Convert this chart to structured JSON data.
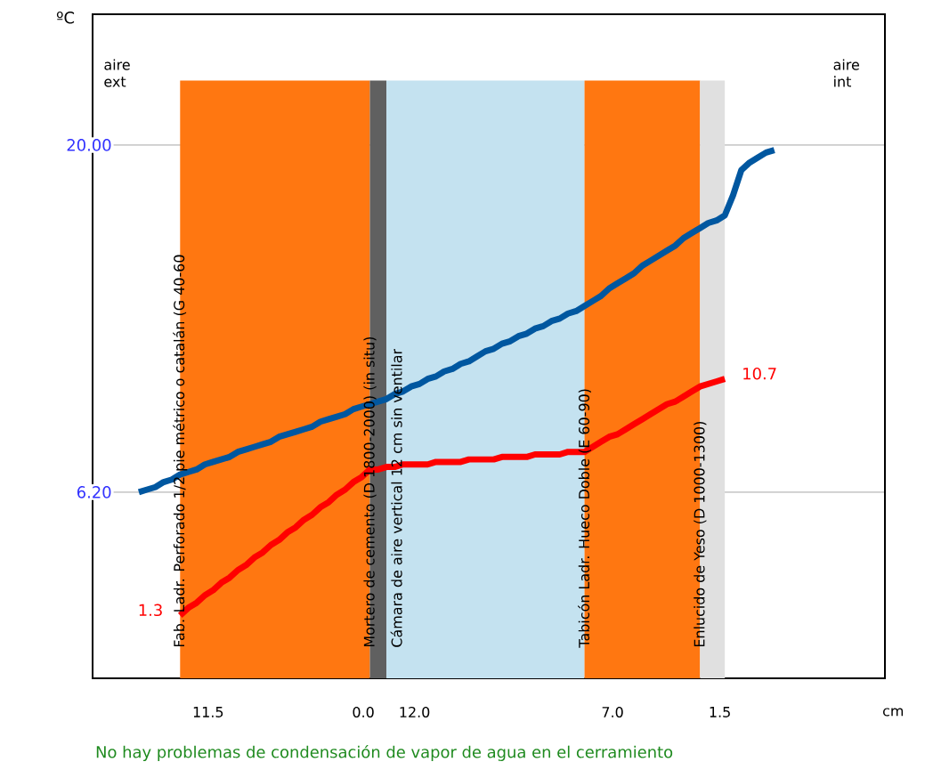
{
  "chart_data": {
    "type": "line",
    "ylabel": "ºC",
    "categories": [
      null,
      null,
      null,
      null,
      null,
      null,
      null,
      null,
      null,
      null,
      null,
      null,
      null,
      null,
      null,
      null,
      null,
      null,
      null,
      null,
      null,
      null,
      null,
      null,
      null,
      null,
      null,
      null,
      null,
      null,
      null,
      null,
      null,
      null,
      null,
      null,
      null,
      null,
      null,
      null,
      null,
      null,
      null,
      null,
      null,
      null,
      null,
      null,
      null,
      null,
      null,
      null,
      null,
      null,
      null,
      null,
      null,
      null,
      null,
      null,
      null,
      null,
      null,
      null,
      null,
      null,
      null,
      null,
      null,
      null,
      null,
      null,
      null,
      null,
      null,
      null,
      null,
      null
    ],
    "ylim": [
      -1.2,
      25.2
    ],
    "yticks": [
      {
        "value": 6.2,
        "label": "6.20"
      },
      {
        "value": 20,
        "label": "20.00"
      }
    ],
    "grid": "y",
    "series": [
      {
        "color": "#0057a0",
        "values": [
          6.2,
          6.3,
          6.4,
          6.6,
          6.7,
          6.9,
          7.0,
          7.1,
          7.3,
          7.4,
          7.5,
          7.6,
          7.8,
          7.9,
          8.0,
          8.1,
          8.2,
          8.4,
          8.5,
          8.6,
          8.7,
          8.8,
          9.0,
          9.1,
          9.2,
          9.3,
          9.5,
          9.6,
          9.7,
          9.8,
          9.9,
          10.1,
          10.2,
          10.4,
          10.5,
          10.7,
          10.8,
          11.0,
          11.1,
          11.3,
          11.4,
          11.6,
          11.8,
          11.9,
          12.1,
          12.2,
          12.4,
          12.5,
          12.7,
          12.8,
          13.0,
          13.1,
          13.3,
          13.4,
          13.6,
          13.8,
          14.0,
          14.3,
          14.5,
          14.7,
          14.9,
          15.2,
          15.4,
          15.6,
          15.8,
          16.0,
          16.3,
          16.5,
          16.7,
          16.9,
          17.0,
          17.2,
          18.0,
          19.0,
          19.3,
          19.5,
          19.7,
          19.8
        ]
      },
      {
        "color": "#ff0000",
        "values": [
          null,
          null,
          null,
          null,
          null,
          1.3,
          1.6,
          1.8,
          2.1,
          2.3,
          2.6,
          2.8,
          3.1,
          3.3,
          3.6,
          3.8,
          4.1,
          4.3,
          4.6,
          4.8,
          5.1,
          5.3,
          5.6,
          5.8,
          6.1,
          6.3,
          6.6,
          6.8,
          7.1,
          7.1,
          7.2,
          7.2,
          7.3,
          7.3,
          7.3,
          7.3,
          7.4,
          7.4,
          7.4,
          7.4,
          7.5,
          7.5,
          7.5,
          7.5,
          7.6,
          7.6,
          7.6,
          7.6,
          7.7,
          7.7,
          7.7,
          7.7,
          7.8,
          7.8,
          7.8,
          8.0,
          8.2,
          8.4,
          8.5,
          8.7,
          8.9,
          9.1,
          9.3,
          9.5,
          9.7,
          9.8,
          10.0,
          10.2,
          10.4,
          10.5,
          10.6,
          10.7,
          null,
          null,
          null,
          null,
          null,
          null
        ],
        "value_labels": [
          null,
          null,
          null,
          null,
          null,
          "1.3",
          null,
          null,
          null,
          null,
          null,
          null,
          null,
          null,
          null,
          null,
          null,
          null,
          null,
          null,
          null,
          null,
          null,
          null,
          null,
          null,
          null,
          null,
          null,
          null,
          null,
          null,
          null,
          null,
          null,
          null,
          null,
          null,
          null,
          null,
          null,
          null,
          null,
          null,
          null,
          null,
          null,
          null,
          null,
          null,
          null,
          null,
          null,
          null,
          null,
          null,
          null,
          null,
          null,
          null,
          null,
          null,
          null,
          null,
          null,
          null,
          null,
          null,
          null,
          null,
          null,
          "10.7",
          null,
          null,
          null,
          null,
          null,
          null
        ]
      }
    ],
    "annotations": [
      "aire ext",
      "aire int",
      "No hay problemas de condensación de vapor de agua en el cerramiento",
      "Fab. Ladr. Perforado 1/2 pie métrico o catalán (G 40-60",
      "Mortero de cemento (D 1800-2000) (in situ)",
      "Cámara de aire vertical 12 cm sin ventilar",
      "Tabicón Ladr. Hueco Doble (E 60-90)",
      "Enlucido de Yeso (D 1000-1300)",
      "11.5",
      "0.0",
      "12.0",
      "7.0",
      "1.5",
      "cm"
    ]
  }
}
